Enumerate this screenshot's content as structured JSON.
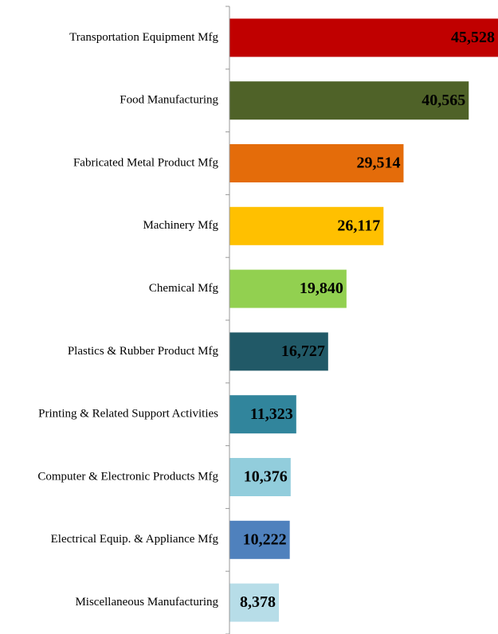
{
  "chart_data": {
    "type": "hbar",
    "categories": [
      "Transportation Equipment Mfg",
      "Food Manufacturing",
      "Fabricated Metal Product Mfg",
      "Machinery Mfg",
      "Chemical Mfg",
      "Plastics & Rubber Product Mfg",
      "Printing & Related Support Activities",
      "Computer & Electronic Products Mfg",
      "Electrical Equip. & Appliance Mfg",
      "Miscellaneous Manufacturing"
    ],
    "values": [
      45528,
      40565,
      29514,
      26117,
      19840,
      16727,
      11323,
      10376,
      10222,
      8378
    ],
    "value_labels": [
      "45,528",
      "40,565",
      "29,514",
      "26,117",
      "19,840",
      "16,727",
      "11,323",
      "10,376",
      "10,222",
      "8,378"
    ],
    "colors": [
      "#c00000",
      "#4f6228",
      "#e46c0a",
      "#ffc000",
      "#92d050",
      "#215967",
      "#31859c",
      "#92cddc",
      "#4f81bd",
      "#b7dde8"
    ]
  }
}
